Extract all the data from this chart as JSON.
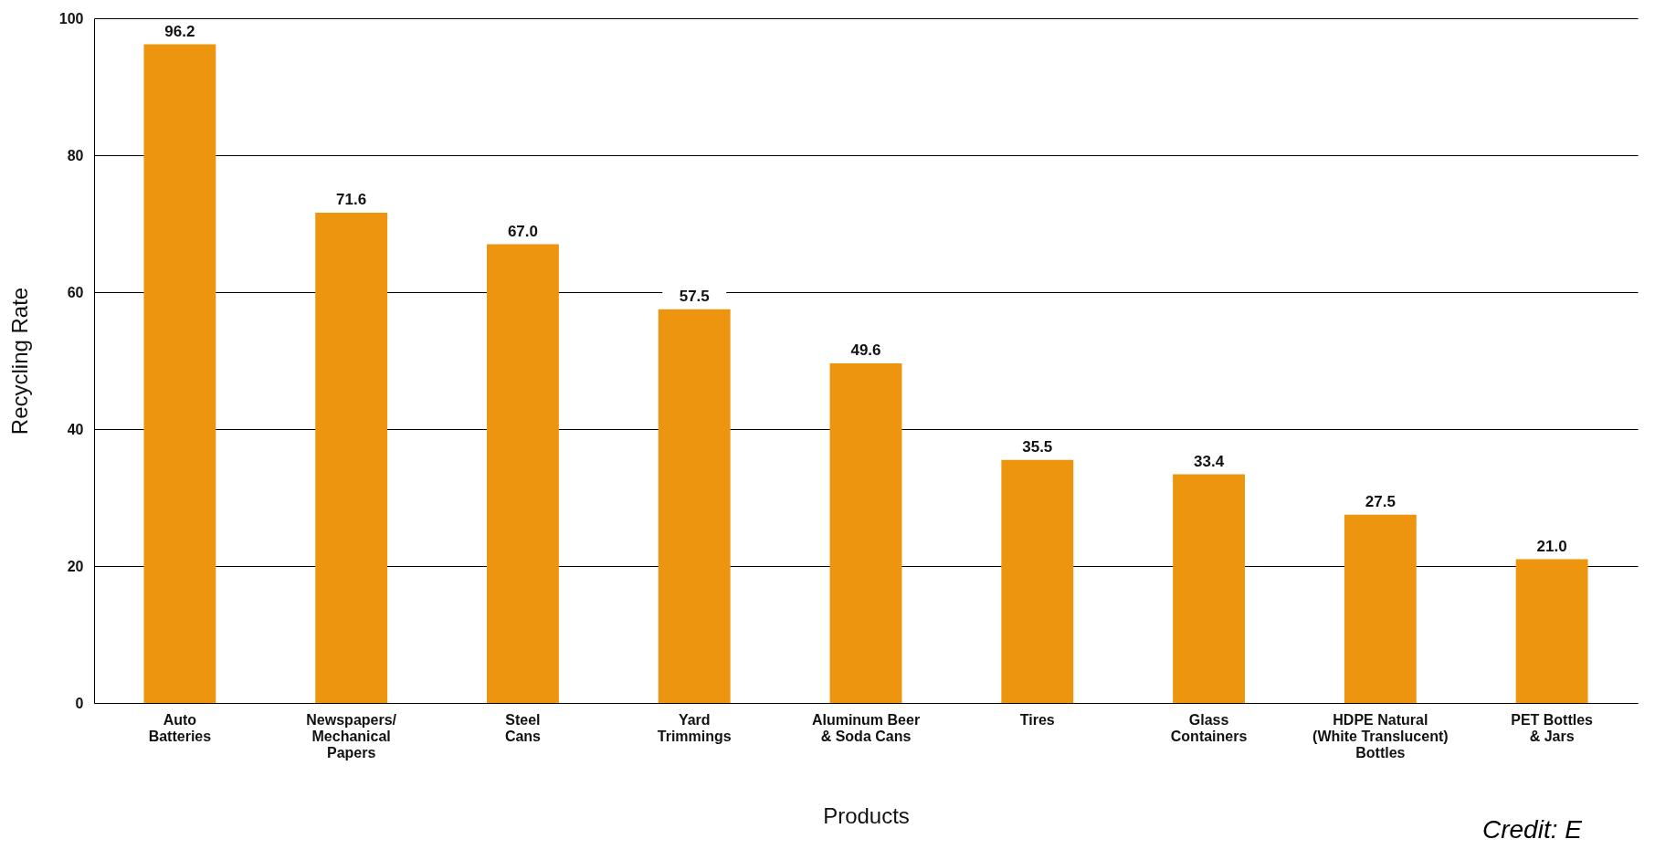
{
  "chart_data": {
    "type": "bar",
    "categories": [
      "Auto\nBatteries",
      "Newspapers/\nMechanical\nPapers",
      "Steel\nCans",
      "Yard\nTrimmings",
      "Aluminum Beer\n& Soda Cans",
      "Tires",
      "Glass\nContainers",
      "HDPE Natural\n(White Translucent)\nBottles",
      "PET Bottles\n& Jars"
    ],
    "values": [
      96.2,
      71.6,
      67.0,
      57.5,
      49.6,
      35.5,
      33.4,
      27.5,
      21.0
    ],
    "value_labels": [
      "96.2",
      "71.6",
      "67.0",
      "57.5",
      "49.6",
      "35.5",
      "33.4",
      "27.5",
      "21.0"
    ],
    "color": "#ee9510",
    "xlabel": "Products",
    "ylabel": "Recycling Rate",
    "ylim": [
      0,
      100
    ],
    "yticks": [
      0,
      20,
      40,
      60,
      80,
      100
    ],
    "grid": "y",
    "annotations": [
      "Credit: E"
    ]
  }
}
